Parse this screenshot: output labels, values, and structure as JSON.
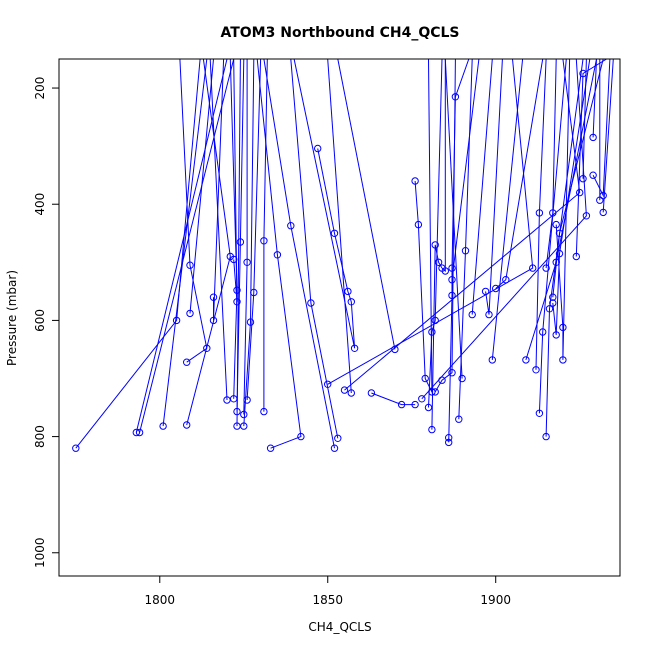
{
  "chart_data": {
    "type": "scatter",
    "title": "ATOM3 Northbound CH4_QCLS",
    "xlabel": "CH4_QCLS",
    "ylabel": "Pressure (mbar)",
    "xlim": [
      1770,
      1937
    ],
    "ylim": [
      1040,
      150
    ],
    "y_reversed": true,
    "x_ticks": [
      1800,
      1850,
      1900
    ],
    "y_ticks": [
      200,
      400,
      600,
      800,
      1000
    ],
    "grid": false,
    "legend": "none",
    "color": "#0000ff",
    "series": [
      {
        "points": [
          [
            1775,
            820
          ],
          [
            1805,
            600
          ],
          [
            1812,
            150
          ]
        ]
      },
      {
        "points": [
          [
            1793,
            793
          ],
          [
            1820,
            150
          ]
        ]
      },
      {
        "points": [
          [
            1794,
            793
          ],
          [
            1822,
            150
          ]
        ]
      },
      {
        "points": [
          [
            1801,
            782
          ],
          [
            1814,
            150
          ]
        ]
      },
      {
        "points": [
          [
            1808,
            780
          ],
          [
            1821,
            490
          ],
          [
            1813,
            150
          ]
        ]
      },
      {
        "points": [
          [
            1808,
            672
          ],
          [
            1814,
            648
          ],
          [
            1809,
            505
          ],
          [
            1806,
            150
          ]
        ]
      },
      {
        "points": [
          [
            1809,
            588
          ],
          [
            1816,
            150
          ]
        ]
      },
      {
        "points": [
          [
            1816,
            560
          ],
          [
            1816,
            600
          ],
          [
            1819,
            150
          ]
        ]
      },
      {
        "points": [
          [
            1820,
            737
          ],
          [
            1815,
            150
          ]
        ]
      },
      {
        "points": [
          [
            1822,
            495
          ],
          [
            1823,
            568
          ],
          [
            1822,
            150
          ]
        ]
      },
      {
        "points": [
          [
            1822,
            735
          ],
          [
            1823,
            548
          ],
          [
            1821,
            150
          ]
        ]
      },
      {
        "points": [
          [
            1823,
            757
          ],
          [
            1824,
            465
          ],
          [
            1825,
            150
          ]
        ]
      },
      {
        "points": [
          [
            1823,
            782
          ],
          [
            1824,
            150
          ]
        ]
      },
      {
        "points": [
          [
            1825,
            762
          ],
          [
            1826,
            500
          ],
          [
            1826,
            150
          ]
        ]
      },
      {
        "points": [
          [
            1825,
            782
          ],
          [
            1827,
            603
          ],
          [
            1828,
            150
          ]
        ]
      },
      {
        "points": [
          [
            1826,
            737
          ],
          [
            1828,
            552
          ],
          [
            1830,
            150
          ]
        ]
      },
      {
        "points": [
          [
            1831,
            757
          ],
          [
            1831,
            463
          ],
          [
            1832,
            150
          ]
        ]
      },
      {
        "points": [
          [
            1833,
            820
          ],
          [
            1842,
            800
          ],
          [
            1835,
            487
          ],
          [
            1829,
            150
          ]
        ]
      },
      {
        "points": [
          [
            1852,
            820
          ],
          [
            1839,
            437
          ],
          [
            1831,
            150
          ]
        ]
      },
      {
        "points": [
          [
            1853,
            803
          ],
          [
            1845,
            570
          ],
          [
            1839,
            150
          ]
        ]
      },
      {
        "points": [
          [
            1847,
            304
          ],
          [
            1852,
            450
          ],
          [
            1856,
            550
          ],
          [
            1857,
            568
          ],
          [
            1858,
            648
          ],
          [
            1840,
            150
          ]
        ]
      },
      {
        "points": [
          [
            1857,
            725
          ],
          [
            1850,
            150
          ]
        ]
      },
      {
        "points": [
          [
            1863,
            725
          ],
          [
            1872,
            745
          ],
          [
            1876,
            745
          ]
        ]
      },
      {
        "points": [
          [
            1870,
            650
          ],
          [
            1853,
            150
          ]
        ]
      },
      {
        "points": [
          [
            1876,
            360
          ],
          [
            1877,
            435
          ],
          [
            1879,
            700
          ],
          [
            1881,
            723
          ],
          [
            1880,
            150
          ]
        ]
      },
      {
        "points": [
          [
            1880,
            750
          ],
          [
            1881,
            620
          ],
          [
            1882,
            600
          ],
          [
            1884,
            150
          ]
        ]
      },
      {
        "points": [
          [
            1881,
            788
          ],
          [
            1882,
            470
          ],
          [
            1883,
            500
          ],
          [
            1884,
            510
          ],
          [
            1885,
            515
          ],
          [
            1885,
            150
          ]
        ]
      },
      {
        "points": [
          [
            1882,
            723
          ],
          [
            1884,
            703
          ],
          [
            1887,
            690
          ],
          [
            1888,
            150
          ]
        ]
      },
      {
        "points": [
          [
            1886,
            802
          ],
          [
            1886,
            810
          ],
          [
            1887,
            557
          ],
          [
            1887,
            510
          ],
          [
            1888,
            215
          ],
          [
            1892,
            150
          ]
        ]
      },
      {
        "points": [
          [
            1887,
            530
          ],
          [
            1895,
            150
          ]
        ]
      },
      {
        "points": [
          [
            1889,
            770
          ],
          [
            1891,
            480
          ],
          [
            1893,
            150
          ]
        ]
      },
      {
        "points": [
          [
            1890,
            700
          ],
          [
            1885,
            150
          ]
        ]
      },
      {
        "points": [
          [
            1891,
            150
          ],
          [
            1896,
            150
          ]
        ]
      },
      {
        "points": [
          [
            1893,
            590
          ],
          [
            1899,
            150
          ]
        ]
      },
      {
        "points": [
          [
            1897,
            550
          ],
          [
            1898,
            590
          ],
          [
            1902,
            150
          ]
        ]
      },
      {
        "points": [
          [
            1899,
            668
          ],
          [
            1908,
            150
          ]
        ]
      },
      {
        "points": [
          [
            1900,
            545
          ],
          [
            1903,
            530
          ],
          [
            1914,
            150
          ]
        ]
      },
      {
        "points": [
          [
            1850,
            710
          ],
          [
            1911,
            510
          ],
          [
            1905,
            150
          ]
        ]
      },
      {
        "points": [
          [
            1855,
            720
          ],
          [
            1925,
            380
          ],
          [
            1920,
            150
          ]
        ]
      },
      {
        "points": [
          [
            1878,
            735
          ],
          [
            1927,
            420
          ],
          [
            1924,
            150
          ]
        ]
      },
      {
        "points": [
          [
            1909,
            668
          ],
          [
            1918,
            500
          ],
          [
            1930,
            150
          ]
        ]
      },
      {
        "points": [
          [
            1912,
            685
          ],
          [
            1913,
            415
          ],
          [
            1915,
            150
          ]
        ]
      },
      {
        "points": [
          [
            1913,
            760
          ],
          [
            1914,
            620
          ],
          [
            1921,
            150
          ]
        ]
      },
      {
        "points": [
          [
            1915,
            800
          ],
          [
            1916,
            580
          ],
          [
            1926,
            150
          ]
        ]
      },
      {
        "points": [
          [
            1915,
            510
          ],
          [
            1917,
            415
          ],
          [
            1918,
            150
          ]
        ]
      },
      {
        "points": [
          [
            1917,
            560
          ],
          [
            1919,
            450
          ],
          [
            1932,
            150
          ]
        ]
      },
      {
        "points": [
          [
            1917,
            570
          ],
          [
            1918,
            625
          ],
          [
            1919,
            485
          ],
          [
            1928,
            150
          ]
        ]
      },
      {
        "points": [
          [
            1918,
            435
          ],
          [
            1920,
            612
          ],
          [
            1920,
            668
          ],
          [
            1922,
            150
          ]
        ]
      },
      {
        "points": [
          [
            1924,
            490
          ],
          [
            1926,
            175
          ],
          [
            1933,
            150
          ]
        ]
      },
      {
        "points": [
          [
            1926,
            356
          ],
          [
            1927,
            150
          ]
        ]
      },
      {
        "points": [
          [
            1929,
            285
          ],
          [
            1930,
            150
          ]
        ]
      },
      {
        "points": [
          [
            1931,
            393
          ],
          [
            1931,
            150
          ]
        ]
      },
      {
        "points": [
          [
            1932,
            414
          ],
          [
            1935,
            150
          ]
        ]
      },
      {
        "points": [
          [
            1929,
            350
          ],
          [
            1932,
            385
          ],
          [
            1934,
            150
          ]
        ]
      }
    ]
  }
}
